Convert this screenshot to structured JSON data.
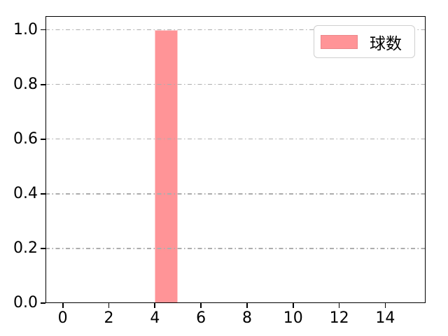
{
  "chart_data": {
    "type": "bar",
    "title": "",
    "xlabel": "",
    "ylabel": "",
    "series": [
      {
        "name": "球数",
        "color": "#ff9497",
        "bars": [
          {
            "x_start": 4,
            "x_end": 5,
            "value": 1.0
          }
        ]
      }
    ],
    "xlim": [
      -0.75,
      15.75
    ],
    "ylim": [
      0,
      1.05
    ],
    "x_ticks": [
      0,
      2,
      4,
      6,
      8,
      10,
      12,
      14
    ],
    "x_tick_labels": [
      "0",
      "2",
      "4",
      "6",
      "8",
      "10",
      "12",
      "14"
    ],
    "y_ticks": [
      0,
      0.2,
      0.4,
      0.6,
      0.8,
      1.0
    ],
    "y_tick_labels": [
      "0.0",
      "0.2",
      "0.4",
      "0.6",
      "0.8",
      "1.0"
    ],
    "grid": {
      "axis": "y",
      "style": "dash-dot",
      "color": "#adadad",
      "above_bars": true
    },
    "legend": {
      "position": "upper-right",
      "entries": [
        {
          "label": "球数",
          "swatch_color": "#ff9497",
          "swatch_edge_color": "#ec878b"
        }
      ]
    },
    "colors": {
      "background": "#ffffff",
      "spine": "#000000",
      "tick": "#000000",
      "tick_label": "#000000"
    }
  }
}
